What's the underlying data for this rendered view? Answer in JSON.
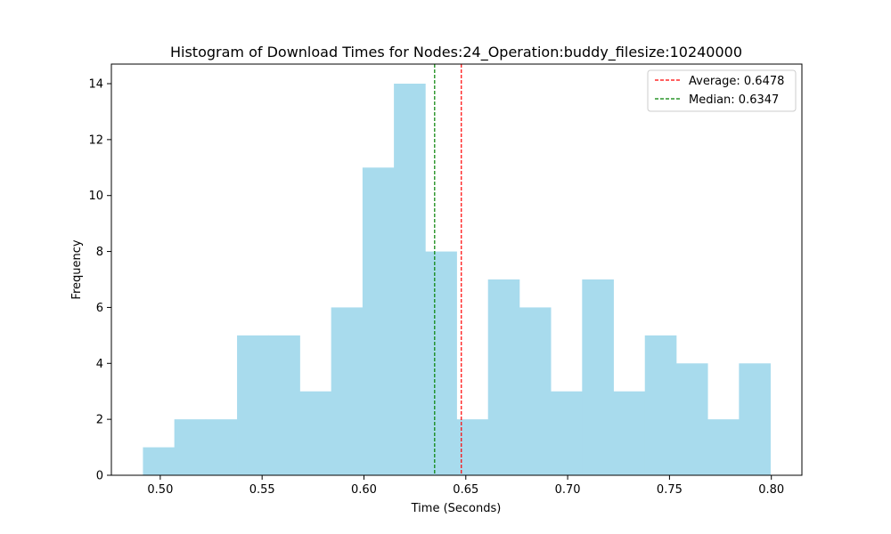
{
  "chart_data": {
    "type": "histogram",
    "title": "Histogram of Download Times for Nodes:24_Operation:buddy_filesize:10240000",
    "xlabel": "Time (Seconds)",
    "ylabel": "Frequency",
    "xlim": [
      0.476,
      0.815
    ],
    "ylim": [
      0,
      14.7
    ],
    "x_ticks": [
      0.5,
      0.55,
      0.6,
      0.65,
      0.7,
      0.75,
      0.8
    ],
    "x_tick_labels": [
      "0.50",
      "0.55",
      "0.60",
      "0.65",
      "0.70",
      "0.75",
      "0.80"
    ],
    "y_ticks": [
      0,
      2,
      4,
      6,
      8,
      10,
      12,
      14
    ],
    "y_tick_labels": [
      "0",
      "2",
      "4",
      "6",
      "8",
      "10",
      "12",
      "14"
    ],
    "bin_range": [
      0.4915,
      0.7995
    ],
    "counts": [
      1,
      2,
      2,
      5,
      5,
      3,
      6,
      11,
      14,
      8,
      2,
      7,
      6,
      3,
      7,
      3,
      5,
      4,
      2,
      4
    ],
    "bar_color": "#a8dbed",
    "grid": false,
    "legend_position": "upper right",
    "reference_lines": [
      {
        "label": "Average: 0.6478",
        "value": 0.6478,
        "color": "#ff0000",
        "style": "dashed"
      },
      {
        "label": "Median: 0.6347",
        "value": 0.6347,
        "color": "#008000",
        "style": "dashed"
      }
    ]
  }
}
